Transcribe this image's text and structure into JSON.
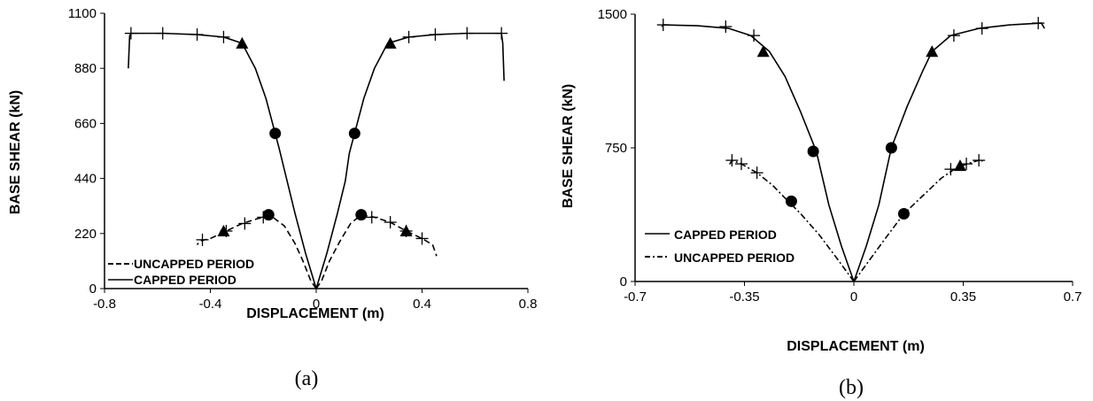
{
  "chart_data": [
    {
      "type": "line",
      "caption": "(a)",
      "xlabel": "DISPLACEMENT (m)",
      "ylabel": "BASE SHEAR (kN)",
      "xlim": [
        -0.8,
        0.8
      ],
      "ylim": [
        0,
        1100
      ],
      "xticks": [
        "-0.8",
        "-0.4",
        "0",
        "0.4",
        "0.8"
      ],
      "yticks": [
        "0",
        "220",
        "440",
        "660",
        "880",
        "1100"
      ],
      "legend": [
        "UNCAPPED PERIOD",
        "CAPPED PERIOD"
      ],
      "legend_position": "bottom-left",
      "grid": false,
      "series": [
        {
          "name": "CAPPED PERIOD",
          "style": "solid",
          "left": [
            [
              0,
              0
            ],
            [
              -0.04,
              140
            ],
            [
              -0.08,
              300
            ],
            [
              -0.11,
              430
            ],
            [
              -0.14,
              560
            ],
            [
              -0.155,
              620
            ],
            [
              -0.19,
              760
            ],
            [
              -0.23,
              880
            ],
            [
              -0.26,
              940
            ],
            [
              -0.28,
              980
            ],
            [
              -0.35,
              1005
            ],
            [
              -0.45,
              1015
            ],
            [
              -0.58,
              1020
            ],
            [
              -0.66,
              1020
            ],
            [
              -0.7,
              1020
            ],
            [
              -0.705,
              1010
            ],
            [
              -0.71,
              880
            ]
          ],
          "right": [
            [
              0,
              0
            ],
            [
              0.04,
              140
            ],
            [
              0.08,
              300
            ],
            [
              0.11,
              430
            ],
            [
              0.125,
              540
            ],
            [
              0.145,
              620
            ],
            [
              0.18,
              760
            ],
            [
              0.22,
              880
            ],
            [
              0.25,
              940
            ],
            [
              0.27,
              980
            ],
            [
              0.35,
              1005
            ],
            [
              0.45,
              1015
            ],
            [
              0.57,
              1020
            ],
            [
              0.66,
              1020
            ],
            [
              0.7,
              1020
            ],
            [
              0.705,
              980
            ],
            [
              0.71,
              830
            ]
          ],
          "triangles": [
            [
              -0.28,
              980
            ],
            [
              0.28,
              980
            ]
          ],
          "circles": [
            [
              -0.155,
              620
            ],
            [
              0.145,
              620
            ]
          ],
          "crosses": [
            [
              -0.7,
              1020
            ],
            [
              -0.58,
              1020
            ],
            [
              -0.45,
              1015
            ],
            [
              -0.35,
              1005
            ],
            [
              0.35,
              1005
            ],
            [
              0.45,
              1015
            ],
            [
              0.57,
              1020
            ],
            [
              0.7,
              1020
            ]
          ]
        },
        {
          "name": "UNCAPPED PERIOD",
          "style": "dashed",
          "left": [
            [
              0,
              0
            ],
            [
              -0.02,
              30
            ],
            [
              -0.05,
              110
            ],
            [
              -0.08,
              180
            ],
            [
              -0.12,
              250
            ],
            [
              -0.17,
              290
            ],
            [
              -0.22,
              280
            ],
            [
              -0.28,
              260
            ],
            [
              -0.34,
              230
            ],
            [
              -0.4,
              200
            ],
            [
              -0.44,
              190
            ],
            [
              -0.45,
              175
            ]
          ],
          "right": [
            [
              0,
              0
            ],
            [
              0.02,
              30
            ],
            [
              0.05,
              110
            ],
            [
              0.09,
              190
            ],
            [
              0.13,
              260
            ],
            [
              0.17,
              295
            ],
            [
              0.22,
              285
            ],
            [
              0.28,
              265
            ],
            [
              0.34,
              230
            ],
            [
              0.4,
              200
            ],
            [
              0.44,
              175
            ],
            [
              0.455,
              130
            ]
          ],
          "triangles": [
            [
              -0.35,
              230
            ],
            [
              0.34,
              230
            ]
          ],
          "circles": [
            [
              -0.18,
              295
            ],
            [
              0.17,
              295
            ]
          ],
          "crosses": [
            [
              -0.43,
              195
            ],
            [
              -0.34,
              230
            ],
            [
              -0.27,
              260
            ],
            [
              -0.2,
              285
            ],
            [
              0.21,
              285
            ],
            [
              0.28,
              265
            ],
            [
              0.34,
              230
            ],
            [
              0.4,
              200
            ]
          ]
        }
      ]
    },
    {
      "type": "line",
      "caption": "(b)",
      "xlabel": "DISPLACEMENT (m)",
      "ylabel": "BASE SHEAR (kN)",
      "xlim": [
        -0.7,
        0.7
      ],
      "ylim": [
        0,
        1500
      ],
      "xticks": [
        "-0.7",
        "-0.35",
        "0",
        "0.35",
        "0.7"
      ],
      "yticks": [
        "0",
        "750",
        "1500"
      ],
      "legend": [
        "CAPPED PERIOD",
        "UNCAPPED PERIOD"
      ],
      "legend_position": "bottom-left",
      "grid": false,
      "series": [
        {
          "name": "CAPPED PERIOD",
          "style": "solid",
          "left": [
            [
              0,
              0
            ],
            [
              -0.04,
              200
            ],
            [
              -0.08,
              430
            ],
            [
              -0.12,
              730
            ],
            [
              -0.17,
              950
            ],
            [
              -0.22,
              1150
            ],
            [
              -0.27,
              1290
            ],
            [
              -0.33,
              1380
            ],
            [
              -0.4,
              1420
            ],
            [
              -0.5,
              1435
            ],
            [
              -0.61,
              1440
            ],
            [
              -0.615,
              1430
            ]
          ],
          "right": [
            [
              0,
              0
            ],
            [
              0.04,
              200
            ],
            [
              0.08,
              430
            ],
            [
              0.12,
              750
            ],
            [
              0.17,
              980
            ],
            [
              0.22,
              1180
            ],
            [
              0.25,
              1290
            ],
            [
              0.31,
              1380
            ],
            [
              0.4,
              1420
            ],
            [
              0.5,
              1440
            ],
            [
              0.6,
              1450
            ],
            [
              0.61,
              1420
            ]
          ],
          "triangles": [
            [
              -0.29,
              1290
            ],
            [
              0.25,
              1290
            ]
          ],
          "circles": [
            [
              -0.13,
              730
            ],
            [
              0.12,
              750
            ]
          ],
          "crosses": [
            [
              -0.61,
              1440
            ],
            [
              -0.41,
              1430
            ],
            [
              -0.32,
              1380
            ],
            [
              0.32,
              1380
            ],
            [
              0.41,
              1420
            ],
            [
              0.59,
              1450
            ]
          ]
        },
        {
          "name": "UNCAPPED PERIOD",
          "style": "dashdot",
          "left": [
            [
              0,
              0
            ],
            [
              -0.05,
              120
            ],
            [
              -0.11,
              260
            ],
            [
              -0.17,
              380
            ],
            [
              -0.21,
              450
            ],
            [
              -0.26,
              540
            ],
            [
              -0.31,
              610
            ],
            [
              -0.36,
              660
            ],
            [
              -0.39,
              680
            ],
            [
              -0.4,
              650
            ]
          ],
          "right": [
            [
              0,
              0
            ],
            [
              0.05,
              120
            ],
            [
              0.1,
              240
            ],
            [
              0.16,
              380
            ],
            [
              0.22,
              480
            ],
            [
              0.28,
              580
            ],
            [
              0.33,
              640
            ],
            [
              0.38,
              670
            ],
            [
              0.41,
              685
            ],
            [
              0.41,
              660
            ]
          ],
          "triangles": [
            [
              0.34,
              650
            ]
          ],
          "circles": [
            [
              -0.2,
              450
            ],
            [
              0.16,
              380
            ]
          ],
          "crosses": [
            [
              -0.39,
              680
            ],
            [
              -0.36,
              660
            ],
            [
              -0.31,
              610
            ],
            [
              0.31,
              630
            ],
            [
              0.36,
              660
            ],
            [
              0.4,
              680
            ]
          ]
        }
      ]
    }
  ]
}
